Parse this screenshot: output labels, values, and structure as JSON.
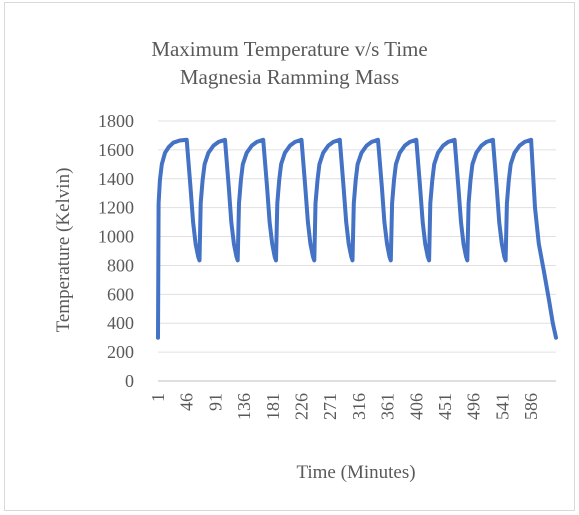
{
  "chart_data": {
    "type": "line",
    "title": "Maximum Temperature v/s Time",
    "subtitle": "Magnesia Ramming Mass",
    "xlabel": "Time (Minutes)",
    "ylabel": "Temperature (Kelvin)",
    "ylim": [
      0,
      1800
    ],
    "yticks": [
      0,
      200,
      400,
      600,
      800,
      1000,
      1200,
      1400,
      1600,
      1800
    ],
    "xlim": [
      1,
      625
    ],
    "xticks": [
      "1",
      "46",
      "91",
      "136",
      "181",
      "226",
      "271",
      "316",
      "361",
      "406",
      "451",
      "496",
      "541",
      "586"
    ],
    "grid": "horizontal",
    "legend": "none",
    "series": [
      {
        "color": "#4472c4",
        "x": [
          1,
          2,
          4,
          7,
          12,
          18,
          25,
          35,
          46,
          52,
          56,
          60,
          64,
          66,
          68,
          71,
          74,
          80,
          88,
          96,
          106,
          112,
          116,
          120,
          124,
          126,
          128,
          131,
          134,
          140,
          148,
          156,
          166,
          172,
          176,
          180,
          184,
          186,
          188,
          191,
          194,
          200,
          208,
          216,
          226,
          232,
          236,
          240,
          244,
          246,
          248,
          251,
          254,
          260,
          268,
          276,
          286,
          292,
          296,
          300,
          304,
          306,
          308,
          311,
          314,
          320,
          328,
          336,
          346,
          352,
          356,
          360,
          364,
          366,
          368,
          371,
          374,
          380,
          388,
          396,
          406,
          412,
          416,
          420,
          424,
          426,
          428,
          431,
          434,
          440,
          448,
          456,
          466,
          472,
          476,
          480,
          484,
          486,
          488,
          491,
          494,
          500,
          508,
          516,
          526,
          532,
          536,
          540,
          544,
          546,
          548,
          551,
          554,
          560,
          568,
          576,
          586,
          592,
          598,
          606,
          614,
          620,
          625
        ],
        "y": [
          300,
          1230,
          1390,
          1500,
          1580,
          1620,
          1650,
          1665,
          1670,
          1340,
          1100,
          950,
          860,
          835,
          1230,
          1390,
          1500,
          1580,
          1630,
          1655,
          1670,
          1340,
          1100,
          950,
          860,
          835,
          1230,
          1390,
          1500,
          1580,
          1630,
          1655,
          1670,
          1340,
          1100,
          950,
          860,
          835,
          1230,
          1390,
          1500,
          1580,
          1630,
          1655,
          1670,
          1340,
          1100,
          950,
          860,
          835,
          1230,
          1390,
          1500,
          1580,
          1630,
          1655,
          1670,
          1340,
          1100,
          950,
          860,
          835,
          1230,
          1390,
          1500,
          1580,
          1630,
          1655,
          1670,
          1340,
          1100,
          950,
          860,
          835,
          1230,
          1390,
          1500,
          1580,
          1630,
          1655,
          1670,
          1340,
          1100,
          950,
          860,
          835,
          1230,
          1390,
          1500,
          1580,
          1630,
          1655,
          1670,
          1340,
          1100,
          950,
          860,
          835,
          1230,
          1390,
          1500,
          1580,
          1630,
          1655,
          1670,
          1340,
          1100,
          950,
          860,
          835,
          1230,
          1390,
          1500,
          1580,
          1630,
          1655,
          1670,
          1200,
          950,
          760,
          560,
          400,
          300
        ]
      }
    ]
  }
}
